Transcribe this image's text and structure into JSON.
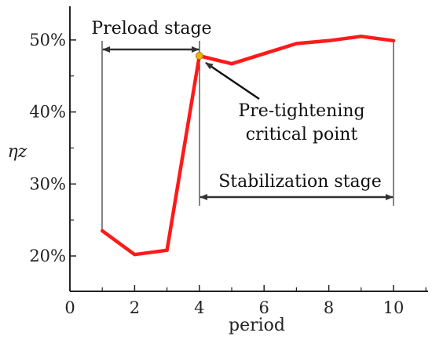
{
  "chart_data": {
    "type": "line",
    "x": [
      1,
      2,
      3,
      4,
      5,
      6,
      7,
      8,
      9,
      10
    ],
    "series": [
      {
        "values": [
          23.5,
          20.2,
          20.8,
          47.8,
          46.7,
          48.1,
          49.5,
          49.9,
          50.5,
          49.9
        ],
        "color": "#ff1a1a"
      }
    ],
    "xlabel": "period",
    "ylabel": "ηz",
    "xlim": [
      0,
      11
    ],
    "ylim": [
      15,
      55
    ],
    "xticks": [
      0,
      2,
      4,
      6,
      8,
      10
    ],
    "xtick_labels": [
      "0",
      "2",
      "4",
      "6",
      "8",
      "10"
    ],
    "yticks": [
      20,
      30,
      40,
      50
    ],
    "ytick_labels": [
      "20%",
      "30%",
      "40%",
      "50%"
    ],
    "grid": false,
    "critical_point": {
      "x": 4,
      "y": 47.8,
      "color": "#f0b400"
    },
    "annotations": {
      "preload_stage": "Preload stage",
      "pretightening_line1": "Pre-tightening",
      "pretightening_line2": "critical point",
      "stabilization_stage": "Stabilization stage"
    }
  }
}
